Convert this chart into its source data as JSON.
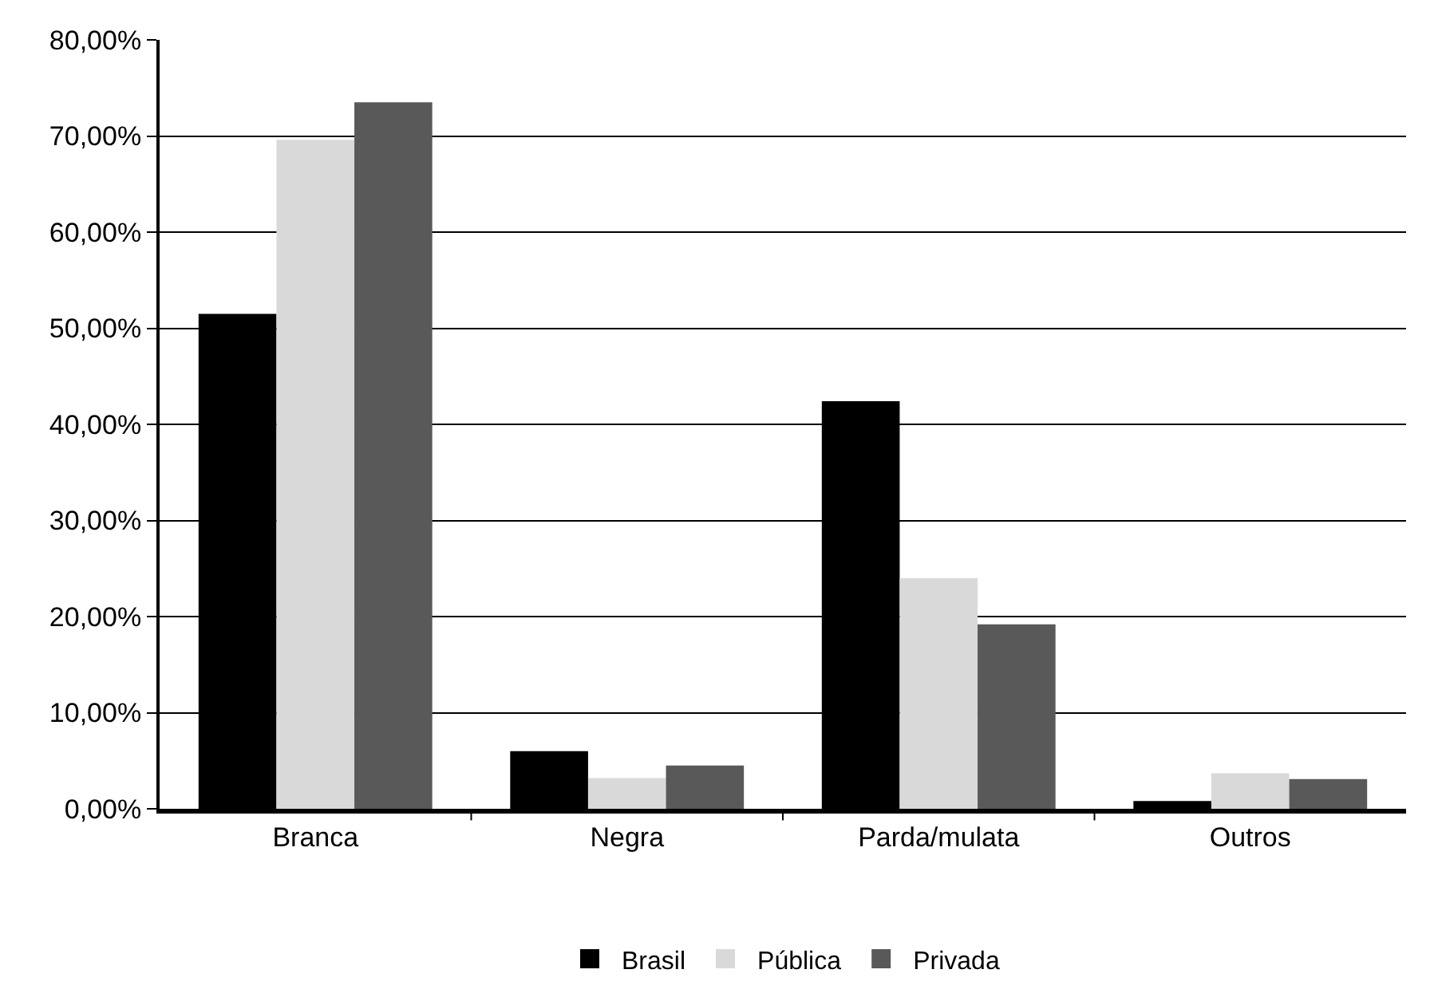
{
  "chart_data": {
    "type": "bar",
    "categories": [
      "Branca",
      "Negra",
      "Parda/mulata",
      "Outros"
    ],
    "series": [
      {
        "name": "Brasil",
        "color": "#000000",
        "values": [
          51.5,
          6.0,
          42.4,
          0.8
        ]
      },
      {
        "name": "Pública",
        "color": "#d9d9d9",
        "values": [
          69.6,
          3.2,
          24.0,
          3.7
        ]
      },
      {
        "name": "Privada",
        "color": "#595959",
        "values": [
          73.5,
          4.5,
          19.2,
          3.1
        ]
      }
    ],
    "ylim": [
      0,
      80
    ],
    "yticks": [
      {
        "value": 0,
        "label": "0,00%"
      },
      {
        "value": 10,
        "label": "10,00%"
      },
      {
        "value": 20,
        "label": "20,00%"
      },
      {
        "value": 30,
        "label": "30,00%"
      },
      {
        "value": 40,
        "label": "40,00%"
      },
      {
        "value": 50,
        "label": "50,00%"
      },
      {
        "value": 60,
        "label": "60,00%"
      },
      {
        "value": 70,
        "label": "70,00%"
      },
      {
        "value": 80,
        "label": "80,00%"
      }
    ],
    "grid": "y",
    "legend": "bottom"
  }
}
